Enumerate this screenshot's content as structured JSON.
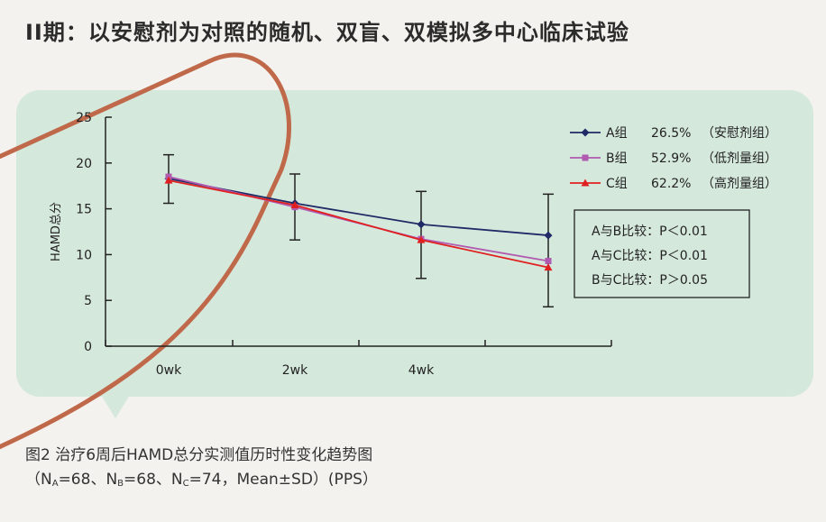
{
  "title": "II期：以安慰剂为对照的随机、双盲、双模拟多中心临床试验",
  "caption": {
    "line1": "图2  治疗6周后HAMD总分实测值历时性变化趋势图",
    "line2": {
      "open": "（N",
      "sub_a": "A",
      "part_a": "=68、N",
      "sub_b": "B",
      "part_b": "=68、N",
      "sub_c": "C",
      "part_c": "=74，Mean±SD）(PPS）"
    }
  },
  "stats_box": [
    "A与B比较：P＜0.01",
    "A与C比较：P＜0.01",
    "B与C比较：P＞0.05"
  ],
  "colors": {
    "background": "#f4f2ee",
    "panel": "#d5e8dc",
    "decor_line": "#c0694a",
    "axis": "#222222"
  },
  "chart_data": {
    "type": "line",
    "ylabel": "HAMD总分",
    "ylim": [
      0,
      25
    ],
    "yticks": [
      0,
      5,
      10,
      15,
      20,
      25
    ],
    "x": [
      0,
      2,
      4,
      6
    ],
    "x_tick_labels": [
      "0wk",
      "2wk",
      "4wk",
      ""
    ],
    "legend_position": "top-right",
    "series": [
      {
        "name": "A组",
        "percent": "26.5%",
        "group_note": "（安慰剂组）",
        "color": "#1f2a66",
        "marker": "diamond",
        "values": [
          18.3,
          15.6,
          13.3,
          12.1
        ]
      },
      {
        "name": "B组",
        "percent": "52.9%",
        "group_note": "（低剂量组）",
        "color": "#b05ab0",
        "marker": "square",
        "values": [
          18.5,
          15.2,
          11.7,
          9.3
        ]
      },
      {
        "name": "C组",
        "percent": "62.2%",
        "group_note": "（高剂量组）",
        "color": "#e02020",
        "marker": "triangle",
        "values": [
          18.1,
          15.4,
          11.6,
          8.6
        ]
      }
    ],
    "error_bars": [
      {
        "x": 0,
        "low": 15.6,
        "high": 20.9
      },
      {
        "x": 2,
        "low": 11.6,
        "high": 18.8
      },
      {
        "x": 4,
        "low": 7.4,
        "high": 16.9
      },
      {
        "x": 6,
        "low": 4.3,
        "high": 16.6
      }
    ]
  }
}
